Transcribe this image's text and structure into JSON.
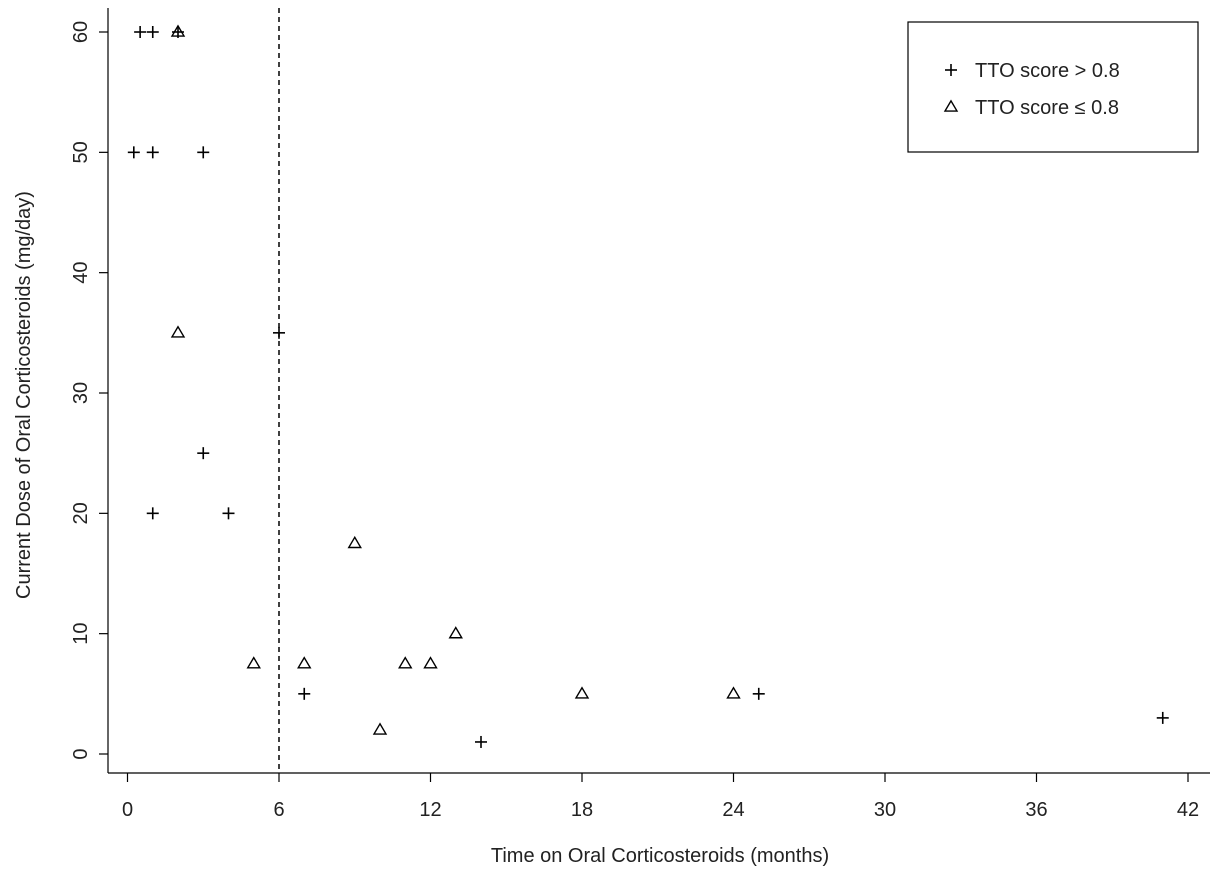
{
  "chart_data": {
    "type": "scatter",
    "xlabel": "Time on Oral Corticosteroids (months)",
    "ylabel": "Current Dose of Oral Corticosteroids (mg/day)",
    "xlim": [
      -1.5,
      43.5
    ],
    "ylim": [
      -1.5,
      61.5
    ],
    "xticks": [
      0,
      6,
      12,
      18,
      24,
      30,
      36,
      42
    ],
    "yticks": [
      0,
      10,
      20,
      30,
      40,
      50,
      60
    ],
    "xtick_labels": [
      "0",
      "6",
      "12",
      "18",
      "24",
      "30",
      "36",
      "42"
    ],
    "ytick_labels": [
      "0",
      "10",
      "20",
      "30",
      "40",
      "50",
      "60"
    ],
    "reference_line": {
      "axis": "x",
      "value": 6,
      "style": "dashed"
    },
    "grid": false,
    "legend_position": "top-right",
    "series": [
      {
        "name": "TTO score > 0.8",
        "marker": "plus",
        "color": "#000000",
        "points": [
          [
            0.5,
            60
          ],
          [
            1,
            60
          ],
          [
            2,
            60
          ],
          [
            0.25,
            50
          ],
          [
            1,
            50
          ],
          [
            3,
            50
          ],
          [
            6,
            35
          ],
          [
            3,
            25
          ],
          [
            1,
            20
          ],
          [
            4,
            20
          ],
          [
            7,
            5
          ],
          [
            25,
            5
          ],
          [
            14,
            1
          ],
          [
            41,
            3
          ]
        ]
      },
      {
        "name": "TTO score ≤ 0.8",
        "marker": "triangle",
        "color": "#000000",
        "points": [
          [
            2,
            60
          ],
          [
            2,
            35
          ],
          [
            9,
            17.5
          ],
          [
            5,
            7.5
          ],
          [
            7,
            7.5
          ],
          [
            11,
            7.5
          ],
          [
            12,
            7.5
          ],
          [
            13,
            10
          ],
          [
            10,
            2
          ],
          [
            18,
            5
          ],
          [
            24,
            5
          ]
        ]
      }
    ]
  }
}
